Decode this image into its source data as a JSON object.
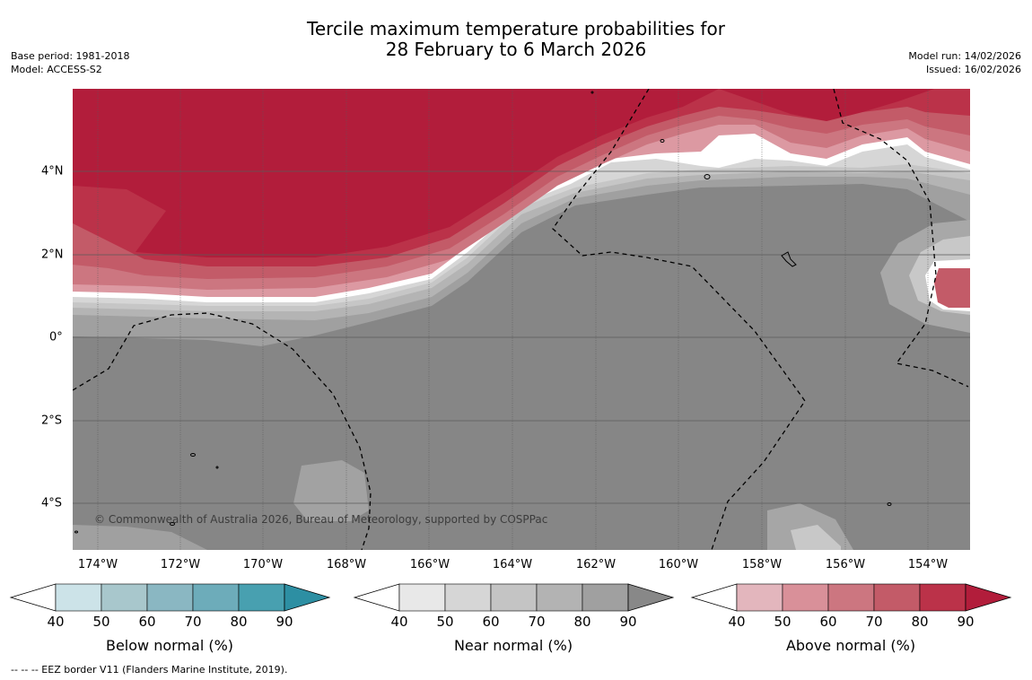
{
  "header": {
    "title_line1": "Tercile maximum temperature probabilities for",
    "title_line2": "28 February to 6 March 2026",
    "base_period": "Base period: 1981-2018",
    "model": "Model: ACCESS-S2",
    "model_run": "Model run: 14/02/2026",
    "issued": "Issued: 16/02/2026"
  },
  "map": {
    "lon_ticks": [
      "174°W",
      "172°W",
      "170°W",
      "168°W",
      "166°W",
      "164°W",
      "162°W",
      "160°W",
      "158°W",
      "156°W",
      "154°W"
    ],
    "lat_ticks": [
      "4°N",
      "2°N",
      "0°",
      "2°S",
      "4°S"
    ],
    "copyright": "© Commonwealth of Australia 2026, Bureau of Meteorology, supported by COSPPac"
  },
  "colorbars": [
    {
      "label": "Below normal (%)",
      "ticks": [
        "40",
        "50",
        "60",
        "70",
        "80",
        "90"
      ],
      "colors": [
        "#cce3e8",
        "#a8c7cc",
        "#8ab7c2",
        "#6dacba",
        "#48a0b0",
        "#2d8fa3"
      ]
    },
    {
      "label": "Near normal (%)",
      "ticks": [
        "40",
        "50",
        "60",
        "70",
        "80",
        "90"
      ],
      "colors": [
        "#e8e8e8",
        "#d6d6d6",
        "#c4c4c4",
        "#b3b3b3",
        "#a0a0a0",
        "#888888"
      ]
    },
    {
      "label": "Above normal (%)",
      "ticks": [
        "40",
        "50",
        "60",
        "70",
        "80",
        "90"
      ],
      "colors": [
        "#e3b6bd",
        "#d99099",
        "#cc7680",
        "#c35b68",
        "#bb3249",
        "#b21d3b"
      ]
    }
  ],
  "footnote": "-- -- -- EEZ border V11 (Flanders Marine Institute, 2019)."
}
